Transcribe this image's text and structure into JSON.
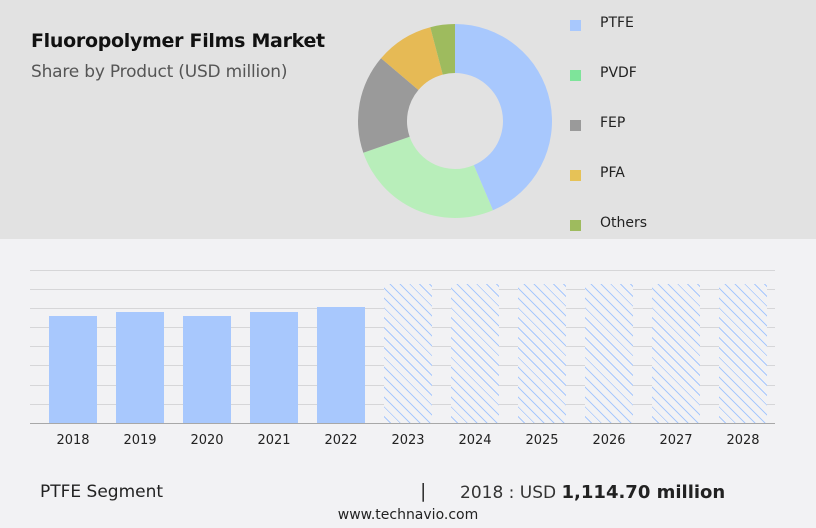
{
  "header": {
    "title": "Fluoropolymer Films Market",
    "subtitle": "Share by Product (USD million)"
  },
  "legend": [
    {
      "label": "PTFE",
      "color": "#a8c8fd"
    },
    {
      "label": "PVDF",
      "color": "#7ee49a"
    },
    {
      "label": "FEP",
      "color": "#9a9a9a"
    },
    {
      "label": "PFA",
      "color": "#e6c257"
    },
    {
      "label": "Others",
      "color": "#9ebb5e"
    }
  ],
  "footer": {
    "segment": "PTFE Segment",
    "separator": "|",
    "year_prefix": "2018 : USD ",
    "value": "1,114.70 million",
    "site": "www.technavio.com"
  },
  "chart_data": [
    {
      "type": "pie",
      "title": "Fluoropolymer Films Market",
      "subtitle": "Share by Product (USD million)",
      "donut": true,
      "categories": [
        "PTFE",
        "PVDF",
        "FEP",
        "PFA",
        "Others"
      ],
      "values": [
        43.6,
        26.1,
        16.5,
        9.7,
        4.1
      ],
      "colors": [
        "#a8c8fd",
        "#b8eeba",
        "#9a9a9a",
        "#e6ba55",
        "#9ebb5e"
      ],
      "legend_position": "right"
    },
    {
      "type": "bar",
      "title": "PTFE Segment",
      "categories": [
        "2018",
        "2019",
        "2020",
        "2021",
        "2022",
        "2023",
        "2024",
        "2025",
        "2026",
        "2027",
        "2028"
      ],
      "values": [
        1114.7,
        1156,
        1115,
        1156,
        1208,
        1448,
        1448,
        1448,
        1448,
        1448,
        1448
      ],
      "forecast_from": "2023",
      "forecast_style": "hatched",
      "color": "#a8c8fd",
      "grid": true,
      "xlabel": "",
      "ylabel": "",
      "ylim": [
        0,
        1600
      ]
    }
  ]
}
